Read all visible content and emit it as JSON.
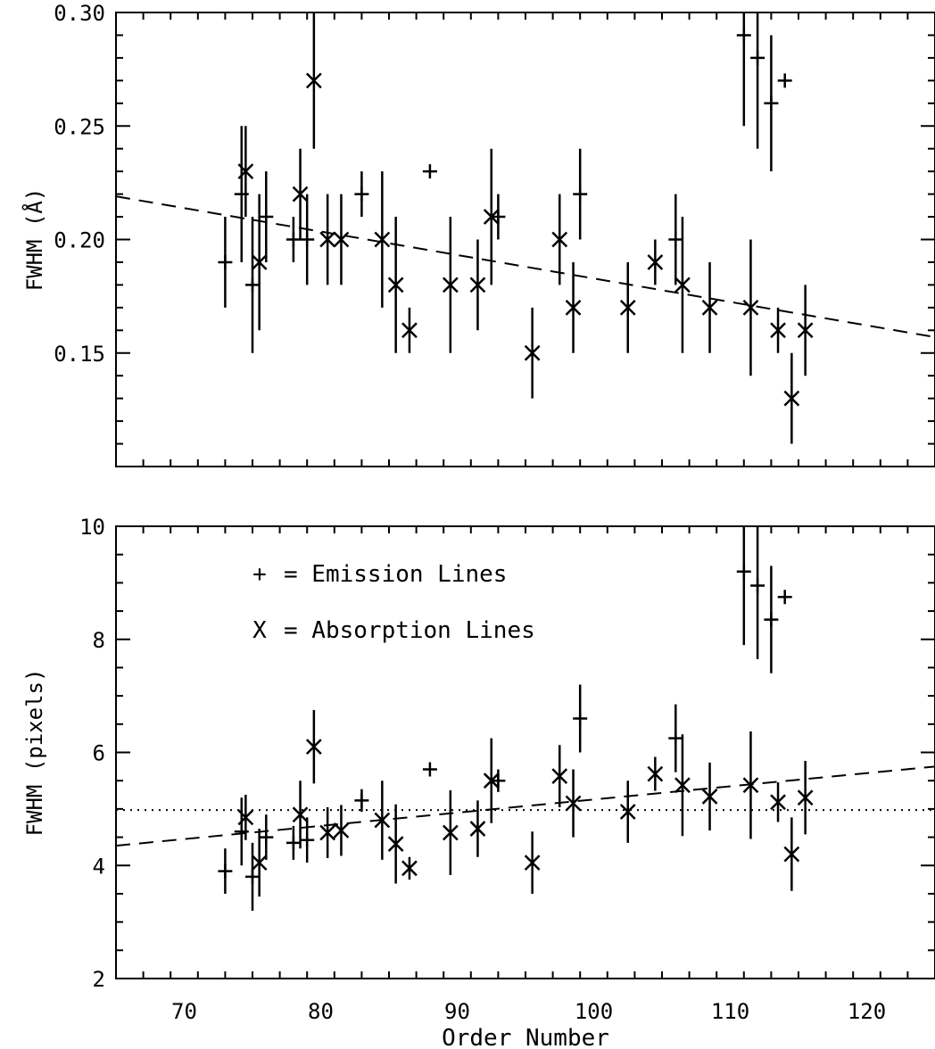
{
  "chart_data": [
    {
      "type": "scatter",
      "panel": "top",
      "title": "",
      "xlabel": "",
      "ylabel": "FWHM (Å)",
      "xlim": [
        65,
        125
      ],
      "ylim": [
        0.1,
        0.3
      ],
      "xticks": [
        70,
        80,
        90,
        100,
        110,
        120
      ],
      "xtick_labels": [
        "",
        "",
        "",
        "",
        "",
        ""
      ],
      "yticks": [
        0.15,
        0.2,
        0.25,
        0.3
      ],
      "ytick_labels": [
        "0.15",
        "0.20",
        "0.25",
        "0.30"
      ],
      "grid": false,
      "series": [
        {
          "name": "Emission Lines",
          "marker": "plus",
          "points": [
            {
              "x": 73.0,
              "y": 0.19,
              "err": 0.02
            },
            {
              "x": 74.2,
              "y": 0.22,
              "err": 0.03
            },
            {
              "x": 75.0,
              "y": 0.18,
              "err": 0.03
            },
            {
              "x": 76.0,
              "y": 0.21,
              "err": 0.02
            },
            {
              "x": 78.0,
              "y": 0.2,
              "err": 0.01
            },
            {
              "x": 79.0,
              "y": 0.2,
              "err": 0.02
            },
            {
              "x": 83.0,
              "y": 0.22,
              "err": 0.01
            },
            {
              "x": 88.0,
              "y": 0.23,
              "err": 0
            },
            {
              "x": 93.0,
              "y": 0.21,
              "err": 0.01
            },
            {
              "x": 99.0,
              "y": 0.22,
              "err": 0.02
            },
            {
              "x": 106.0,
              "y": 0.2,
              "err": 0.02
            },
            {
              "x": 111.0,
              "y": 0.29,
              "err": 0.04
            },
            {
              "x": 112.0,
              "y": 0.28,
              "err": 0.04
            },
            {
              "x": 113.0,
              "y": 0.26,
              "err": 0.03
            },
            {
              "x": 114.0,
              "y": 0.27,
              "err": 0
            }
          ]
        },
        {
          "name": "Absorption Lines",
          "marker": "x",
          "points": [
            {
              "x": 74.5,
              "y": 0.23,
              "err": 0.02
            },
            {
              "x": 75.5,
              "y": 0.19,
              "err": 0.03
            },
            {
              "x": 78.5,
              "y": 0.22,
              "err": 0.02
            },
            {
              "x": 79.5,
              "y": 0.27,
              "err": 0.03
            },
            {
              "x": 80.5,
              "y": 0.2,
              "err": 0.02
            },
            {
              "x": 81.5,
              "y": 0.2,
              "err": 0.02
            },
            {
              "x": 84.5,
              "y": 0.2,
              "err": 0.03
            },
            {
              "x": 85.5,
              "y": 0.18,
              "err": 0.03
            },
            {
              "x": 86.5,
              "y": 0.16,
              "err": 0.01
            },
            {
              "x": 89.5,
              "y": 0.18,
              "err": 0.03
            },
            {
              "x": 91.5,
              "y": 0.18,
              "err": 0.02
            },
            {
              "x": 92.5,
              "y": 0.21,
              "err": 0.03
            },
            {
              "x": 95.5,
              "y": 0.15,
              "err": 0.02
            },
            {
              "x": 97.5,
              "y": 0.2,
              "err": 0.02
            },
            {
              "x": 98.5,
              "y": 0.17,
              "err": 0.02
            },
            {
              "x": 102.5,
              "y": 0.17,
              "err": 0.02
            },
            {
              "x": 104.5,
              "y": 0.19,
              "err": 0.01
            },
            {
              "x": 106.5,
              "y": 0.18,
              "err": 0.03
            },
            {
              "x": 108.5,
              "y": 0.17,
              "err": 0.02
            },
            {
              "x": 111.5,
              "y": 0.17,
              "err": 0.03
            },
            {
              "x": 113.5,
              "y": 0.16,
              "err": 0.01
            },
            {
              "x": 114.5,
              "y": 0.13,
              "err": 0.02
            },
            {
              "x": 115.5,
              "y": 0.16,
              "err": 0.02
            }
          ]
        }
      ],
      "lines": [
        {
          "style": "dashed",
          "x": [
            65,
            125
          ],
          "y": [
            0.219,
            0.157
          ]
        }
      ]
    },
    {
      "type": "scatter",
      "panel": "bottom",
      "title": "",
      "xlabel": "Order Number",
      "ylabel": "FWHM (pixels)",
      "xlim": [
        65,
        125
      ],
      "ylim": [
        2,
        10
      ],
      "xticks": [
        70,
        80,
        90,
        100,
        110,
        120
      ],
      "xtick_labels": [
        "70",
        "80",
        "90",
        "100",
        "110",
        "120"
      ],
      "yticks": [
        2,
        4,
        6,
        8,
        10
      ],
      "ytick_labels": [
        "2",
        "4",
        "6",
        "8",
        "10"
      ],
      "grid": false,
      "legend": {
        "position": "upper-left",
        "entries": [
          {
            "symbol": "+",
            "label": "= Emission Lines"
          },
          {
            "symbol": "X",
            "label": "= Absorption Lines"
          }
        ]
      },
      "series": [
        {
          "name": "Emission Lines",
          "marker": "plus",
          "points": [
            {
              "x": 73.0,
              "y": 3.9,
              "err": 0.4
            },
            {
              "x": 74.2,
              "y": 4.6,
              "err": 0.6
            },
            {
              "x": 75.0,
              "y": 3.8,
              "err": 0.6
            },
            {
              "x": 76.0,
              "y": 4.5,
              "err": 0.4
            },
            {
              "x": 78.0,
              "y": 4.4,
              "err": 0.3
            },
            {
              "x": 79.0,
              "y": 4.45,
              "err": 0.4
            },
            {
              "x": 83.0,
              "y": 5.15,
              "err": 0.2
            },
            {
              "x": 88.0,
              "y": 5.7,
              "err": 0
            },
            {
              "x": 93.0,
              "y": 5.5,
              "err": 0.2
            },
            {
              "x": 99.0,
              "y": 6.6,
              "err": 0.6
            },
            {
              "x": 106.0,
              "y": 6.25,
              "err": 0.6
            },
            {
              "x": 111.0,
              "y": 9.2,
              "err": 1.3
            },
            {
              "x": 112.0,
              "y": 8.95,
              "err": 1.3
            },
            {
              "x": 113.0,
              "y": 8.35,
              "err": 0.95
            },
            {
              "x": 114.0,
              "y": 8.75,
              "err": 0
            }
          ]
        },
        {
          "name": "Absorption Lines",
          "marker": "x",
          "points": [
            {
              "x": 74.5,
              "y": 4.85,
              "err": 0.4
            },
            {
              "x": 75.5,
              "y": 4.05,
              "err": 0.6
            },
            {
              "x": 78.5,
              "y": 4.9,
              "err": 0.6
            },
            {
              "x": 79.5,
              "y": 6.1,
              "err": 0.65
            },
            {
              "x": 80.5,
              "y": 4.58,
              "err": 0.45
            },
            {
              "x": 81.5,
              "y": 4.62,
              "err": 0.45
            },
            {
              "x": 84.5,
              "y": 4.8,
              "err": 0.7
            },
            {
              "x": 85.5,
              "y": 4.38,
              "err": 0.7
            },
            {
              "x": 86.5,
              "y": 3.95,
              "err": 0.2
            },
            {
              "x": 89.5,
              "y": 4.58,
              "err": 0.75
            },
            {
              "x": 91.5,
              "y": 4.65,
              "err": 0.5
            },
            {
              "x": 92.5,
              "y": 5.5,
              "err": 0.75
            },
            {
              "x": 95.5,
              "y": 4.05,
              "err": 0.55
            },
            {
              "x": 97.5,
              "y": 5.58,
              "err": 0.55
            },
            {
              "x": 98.5,
              "y": 5.1,
              "err": 0.6
            },
            {
              "x": 102.5,
              "y": 4.95,
              "err": 0.55
            },
            {
              "x": 104.5,
              "y": 5.62,
              "err": 0.3
            },
            {
              "x": 106.5,
              "y": 5.42,
              "err": 0.9
            },
            {
              "x": 108.5,
              "y": 5.22,
              "err": 0.6
            },
            {
              "x": 111.5,
              "y": 5.42,
              "err": 0.95
            },
            {
              "x": 113.5,
              "y": 5.12,
              "err": 0.35
            },
            {
              "x": 114.5,
              "y": 4.2,
              "err": 0.65
            },
            {
              "x": 115.5,
              "y": 5.2,
              "err": 0.65
            }
          ]
        }
      ],
      "lines": [
        {
          "style": "dashed",
          "x": [
            65,
            125
          ],
          "y": [
            4.35,
            5.75
          ]
        },
        {
          "style": "dotted",
          "x": [
            65,
            125
          ],
          "y": [
            4.98,
            4.98
          ]
        }
      ]
    }
  ]
}
